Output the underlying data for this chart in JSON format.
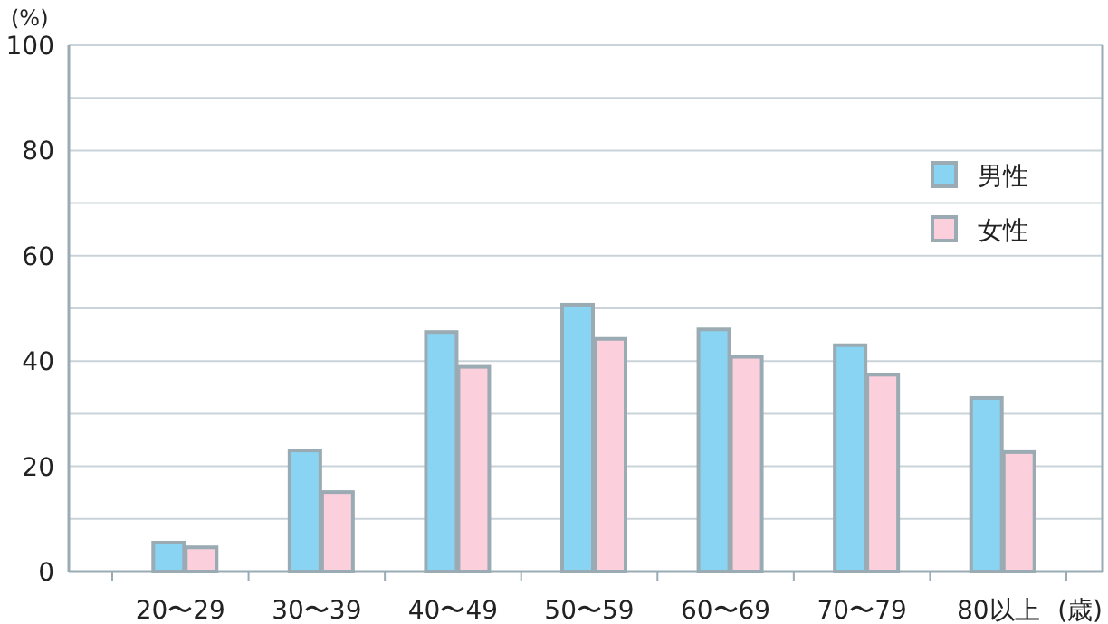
{
  "chart_data": {
    "type": "bar",
    "ylabel": "(%)",
    "xlabel": "(歳)",
    "categories": [
      "20〜29",
      "30〜39",
      "40〜49",
      "50〜59",
      "60〜69",
      "70〜79",
      "80以上"
    ],
    "series": [
      {
        "name": "男性",
        "color": "#8ad4f3",
        "values": [
          5.5,
          23,
          45.5,
          50.7,
          46,
          43,
          33
        ]
      },
      {
        "name": "女性",
        "color": "#fccfdd",
        "values": [
          4.6,
          15.1,
          38.9,
          44.2,
          40.8,
          37.4,
          22.7
        ]
      }
    ],
    "ylim": [
      0,
      100
    ],
    "yticks": [
      0,
      {
        "value": 10,
        "label": null
      },
      20,
      {
        "value": 30,
        "label": null
      },
      40,
      {
        "value": 50,
        "label": null
      },
      60,
      {
        "value": 70,
        "label": null
      },
      80,
      {
        "value": 90,
        "label": null
      },
      100
    ],
    "grid": "y",
    "legend": "right"
  }
}
